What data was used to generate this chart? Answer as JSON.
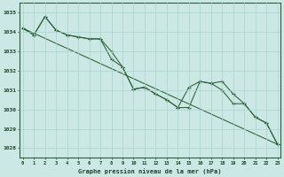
{
  "background_color": "#cce8e4",
  "grid_color": "#a8d4cc",
  "line_color": "#2d5e38",
  "xlabel": "Graphe pression niveau de la mer (hPa)",
  "xlabel_color": "#1a4228",
  "ylim": [
    1027.5,
    1035.5
  ],
  "xlim": [
    -0.3,
    23.3
  ],
  "yticks": [
    1028,
    1029,
    1030,
    1031,
    1032,
    1033,
    1034,
    1035
  ],
  "xticks": [
    0,
    1,
    2,
    3,
    4,
    5,
    6,
    7,
    8,
    9,
    10,
    11,
    12,
    13,
    14,
    15,
    16,
    17,
    18,
    19,
    20,
    21,
    22,
    23
  ],
  "series1_x": [
    0,
    1,
    2,
    3,
    4,
    5,
    6,
    7,
    8,
    9,
    10,
    11,
    12,
    13,
    14,
    15,
    16,
    17,
    18,
    19,
    20,
    21,
    22,
    23
  ],
  "series1_y": [
    1034.2,
    1033.85,
    1034.8,
    1034.1,
    1033.85,
    1033.75,
    1033.65,
    1033.65,
    1032.6,
    1032.2,
    1031.05,
    1031.15,
    1030.8,
    1030.5,
    1030.1,
    1030.1,
    1031.45,
    1031.35,
    1031.0,
    1030.3,
    1030.3,
    1029.6,
    1029.3,
    1028.2
  ],
  "series2_x": [
    0,
    1,
    2,
    3,
    4,
    5,
    6,
    7,
    8,
    9,
    10,
    11,
    12,
    13,
    14,
    15,
    16,
    17,
    18,
    19,
    20,
    21,
    22,
    23
  ],
  "series2_y": [
    1034.2,
    1033.85,
    1034.8,
    1034.1,
    1033.85,
    1033.75,
    1033.65,
    1033.65,
    1033.0,
    1032.2,
    1031.05,
    1031.15,
    1030.8,
    1030.5,
    1030.1,
    1031.15,
    1031.45,
    1031.35,
    1031.45,
    1030.8,
    1030.3,
    1029.6,
    1029.3,
    1028.2
  ],
  "series3_x": [
    0,
    23
  ],
  "series3_y": [
    1034.2,
    1028.2
  ]
}
